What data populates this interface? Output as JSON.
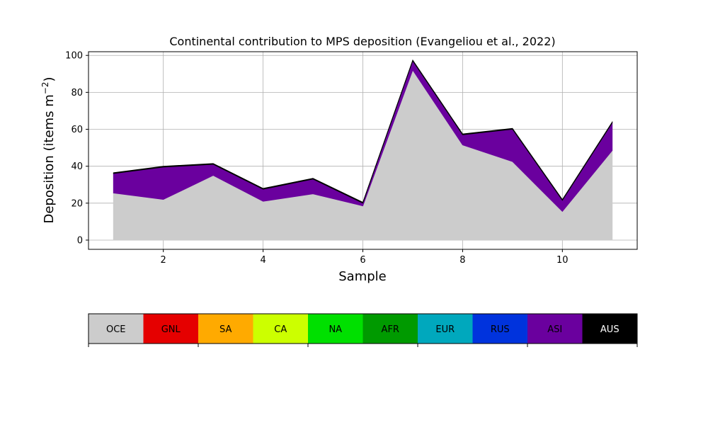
{
  "chart_data": {
    "type": "area",
    "stacked": true,
    "title": "Continental contribution to MPS deposition (Evangeliou et al., 2022)",
    "xlabel": "Sample",
    "ylabel_main": "Deposition (items m",
    "ylabel_sup": "−2",
    "ylabel_close": ")",
    "xlim": [
      0.5,
      11.5
    ],
    "ylim": [
      -5,
      102
    ],
    "xticks": [
      2,
      4,
      6,
      8,
      10
    ],
    "yticks": [
      0,
      20,
      40,
      60,
      80,
      100
    ],
    "grid": true,
    "x": [
      1,
      2,
      3,
      4,
      5,
      6,
      7,
      8,
      9,
      10,
      11
    ],
    "series": [
      {
        "name": "OCE",
        "color": "#cccccc",
        "values": [
          25.5,
          22,
          35,
          21,
          25,
          18.5,
          92,
          51.5,
          42.5,
          15.5,
          48.5
        ]
      },
      {
        "name": "GNL",
        "color": "#e50000",
        "values": [
          0,
          0,
          0,
          0,
          0,
          0,
          0,
          0,
          0,
          0,
          0
        ]
      },
      {
        "name": "SA",
        "color": "#ffaa00",
        "values": [
          0,
          0,
          0,
          0,
          0,
          0,
          0,
          0,
          0,
          0,
          0
        ]
      },
      {
        "name": "CA",
        "color": "#ccff00",
        "values": [
          0,
          0,
          0,
          0,
          0,
          0,
          0,
          0,
          0,
          0,
          0
        ]
      },
      {
        "name": "NA",
        "color": "#00e000",
        "values": [
          0,
          0,
          0,
          0,
          0,
          0,
          0,
          0,
          0,
          0,
          0
        ]
      },
      {
        "name": "AFR",
        "color": "#009a00",
        "values": [
          0,
          0,
          0,
          0,
          0,
          0,
          0,
          0,
          0,
          0,
          0
        ]
      },
      {
        "name": "EUR",
        "color": "#00a8bd",
        "values": [
          0,
          0,
          0,
          0,
          0,
          0,
          0,
          0,
          0,
          0,
          0
        ]
      },
      {
        "name": "RUS",
        "color": "#0033dd",
        "values": [
          0,
          0,
          0,
          0,
          0,
          0,
          0,
          0,
          0,
          0,
          0
        ]
      },
      {
        "name": "ASI",
        "color": "#6a009e",
        "values": [
          10.5,
          17.5,
          6,
          6.5,
          8,
          1.5,
          5,
          5.5,
          17.5,
          6,
          15
        ]
      },
      {
        "name": "AUS",
        "color": "#000000",
        "values": [
          0.5,
          0.5,
          0.5,
          0.5,
          0.5,
          0.5,
          0.5,
          0.5,
          0.5,
          0.5,
          0.5
        ]
      }
    ],
    "colorbar": {
      "labels": [
        "OCE",
        "GNL",
        "SA",
        "CA",
        "NA",
        "AFR",
        "EUR",
        "RUS",
        "ASI",
        "AUS"
      ]
    }
  }
}
